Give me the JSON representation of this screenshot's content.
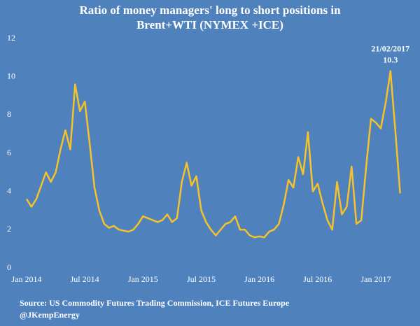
{
  "chart_data": {
    "type": "line",
    "title": [
      "Ratio of  money managers' long to short positions in",
      "Brent+WTI (NYMEX +ICE)"
    ],
    "categories": [
      "Jan 2014",
      null,
      null,
      null,
      null,
      null,
      null,
      null,
      null,
      null,
      null,
      null,
      "Jul 2014",
      null,
      null,
      null,
      null,
      null,
      null,
      null,
      null,
      null,
      null,
      null,
      "Jan 2015",
      null,
      null,
      null,
      null,
      null,
      null,
      null,
      null,
      null,
      null,
      null,
      "Jul 2015",
      null,
      null,
      null,
      null,
      null,
      null,
      null,
      null,
      null,
      null,
      null,
      "Jan 2016",
      null,
      null,
      null,
      null,
      null,
      null,
      null,
      null,
      null,
      null,
      null,
      "Jul 2016",
      null,
      null,
      null,
      null,
      null,
      null,
      null,
      null,
      null,
      null,
      null,
      "Jan 2017",
      null,
      null,
      null,
      null,
      null
    ],
    "values": [
      3.6,
      3.2,
      3.6,
      4.3,
      5.0,
      4.5,
      5.0,
      6.2,
      7.2,
      6.2,
      9.6,
      8.2,
      8.7,
      6.5,
      4.2,
      3.0,
      2.3,
      2.1,
      2.2,
      2.0,
      1.95,
      1.9,
      2.0,
      2.3,
      2.7,
      2.6,
      2.5,
      2.4,
      2.5,
      2.8,
      2.4,
      2.6,
      4.5,
      5.5,
      4.3,
      4.8,
      3.0,
      2.4,
      2.0,
      1.7,
      2.0,
      2.3,
      2.4,
      2.7,
      2.0,
      2.0,
      1.7,
      1.6,
      1.65,
      1.6,
      1.9,
      2.0,
      2.3,
      3.3,
      4.6,
      4.2,
      5.8,
      4.9,
      7.1,
      4.0,
      4.4,
      3.4,
      2.5,
      2.0,
      4.5,
      2.8,
      3.2,
      5.3,
      2.3,
      2.5,
      5.3,
      7.8,
      7.6,
      7.3,
      8.6,
      10.3,
      7.2,
      3.9
    ],
    "color": "#f5c22a",
    "ylim": [
      0,
      12
    ],
    "yticks": [
      0,
      2,
      4,
      6,
      8,
      10,
      12
    ],
    "grid": false,
    "annotations": [
      "21/02/2017",
      "10.3"
    ],
    "source": "Source: US Commodity Futures Trading Commission, ICE Futures Europe",
    "credit": "@JKempEnergy"
  }
}
